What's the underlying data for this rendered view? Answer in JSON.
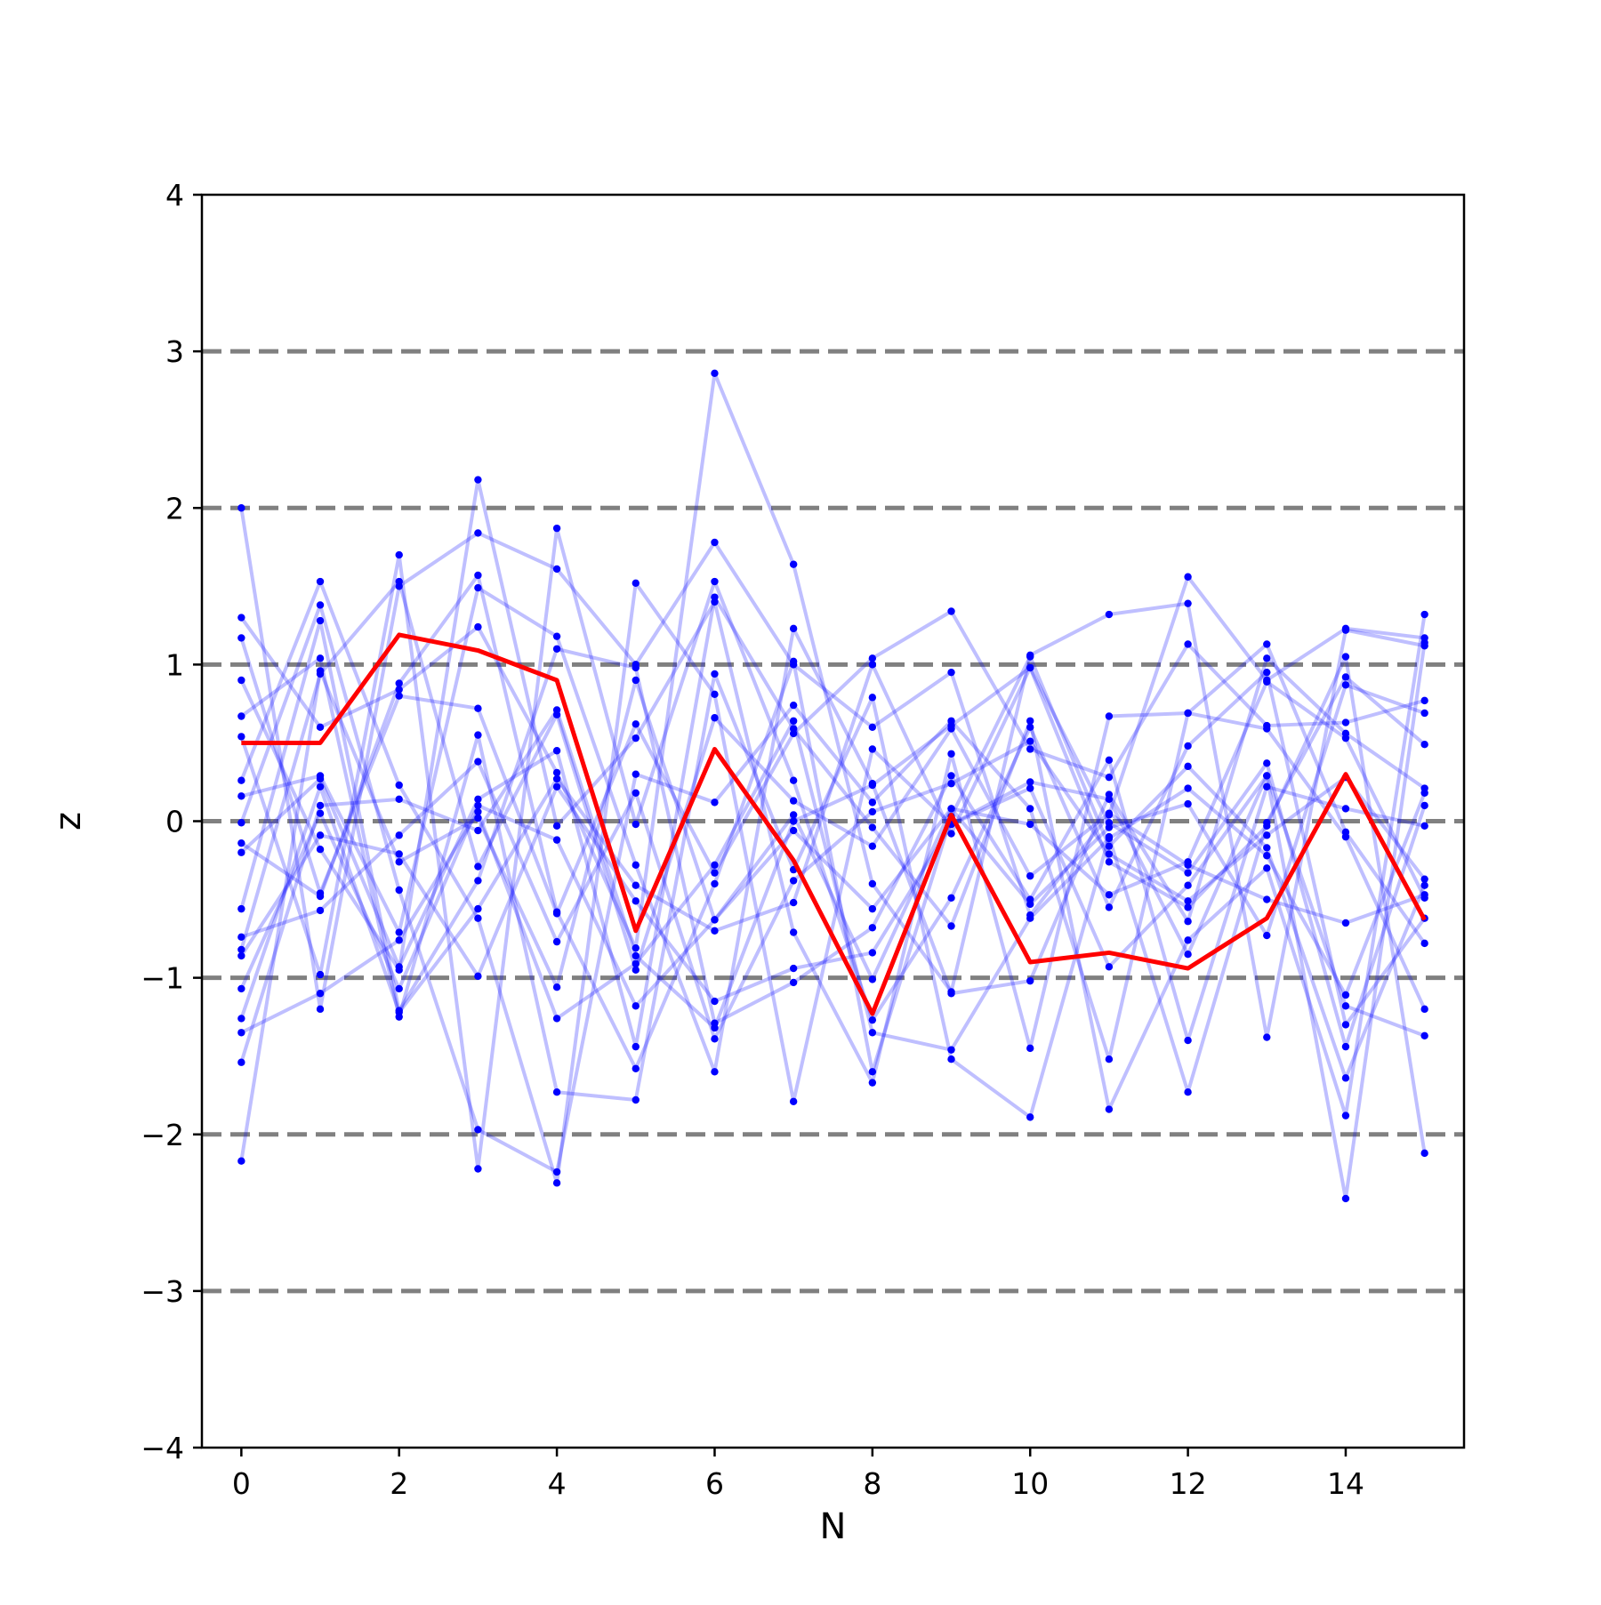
{
  "chart_data": {
    "type": "line",
    "xlabel": "N",
    "ylabel": "z",
    "xlim": [
      -0.5,
      15.5
    ],
    "ylim": [
      -4,
      4
    ],
    "x_ticks": [
      0,
      2,
      4,
      6,
      8,
      10,
      12,
      14
    ],
    "y_ticks": [
      -4,
      -3,
      -2,
      -1,
      0,
      1,
      2,
      3,
      4
    ],
    "x_tick_labels": [
      "0",
      "2",
      "4",
      "6",
      "8",
      "10",
      "12",
      "14"
    ],
    "y_tick_labels": [
      "−4",
      "−3",
      "−2",
      "−1",
      "0",
      "1",
      "2",
      "3",
      "4"
    ],
    "reference_lines": [
      -3,
      -2,
      -1,
      0,
      1,
      2,
      3
    ],
    "grid": false,
    "legend": "none",
    "colors": {
      "trajectories": "#0000ff",
      "highlight": "#ff0000",
      "reference_lines": "#808080"
    },
    "x": [
      0,
      1,
      2,
      3,
      4,
      5,
      6,
      7,
      8,
      9,
      10,
      11,
      12,
      13,
      14,
      15
    ],
    "highlight_series": {
      "values": [
        0.5,
        0.5,
        1.19,
        1.09,
        0.9,
        -0.7,
        0.46,
        -0.25,
        -1.23,
        0.04,
        -0.9,
        -0.84,
        -0.94,
        -0.62,
        0.3,
        -0.63
      ]
    },
    "series": [
      {
        "values": [
          2.0,
          -1.2,
          1.5,
          1.84,
          1.61,
          1.0,
          1.78,
          1.0,
          0.6,
          0.95,
          -0.6,
          0.04,
          1.56,
          0.9,
          1.23,
          1.17
        ]
      },
      {
        "values": [
          1.3,
          0.6,
          0.84,
          1.24,
          0.31,
          -0.81,
          2.86,
          1.64,
          -0.4,
          -1.09,
          1.06,
          1.32,
          1.39,
          -1.38,
          1.22,
          1.12
        ]
      },
      {
        "values": [
          1.17,
          -0.46,
          0.8,
          0.72,
          -0.59,
          0.62,
          -0.33,
          0.56,
          1.04,
          1.34,
          0.46,
          0.28,
          1.13,
          0.61,
          0.63,
          0.77
        ]
      },
      {
        "values": [
          0.9,
          -0.18,
          -0.95,
          2.18,
          -0.03,
          0.53,
          1.4,
          -0.71,
          -1.67,
          0.43,
          -1.45,
          0.67,
          0.69,
          1.13,
          -0.07,
          -0.78
        ]
      },
      {
        "values": [
          0.67,
          1.04,
          -1.25,
          0.55,
          -1.73,
          -1.78,
          0.94,
          -0.31,
          0.79,
          -1.52,
          -1.89,
          -0.1,
          -1.73,
          -0.01,
          0.92,
          0.49
        ]
      },
      {
        "values": [
          0.54,
          -0.98,
          1.7,
          -2.22,
          1.87,
          -0.02,
          1.53,
          0.26,
          -1.27,
          -0.49,
          0.6,
          -0.55,
          0.48,
          0.95,
          -1.3,
          -0.62
        ]
      },
      {
        "values": [
          0.26,
          1.53,
          0.23,
          -0.62,
          -2.31,
          1.52,
          0.81,
          -1.79,
          0.46,
          -0.02,
          0.21,
          -0.93,
          -0.41,
          0.29,
          -2.41,
          1.14
        ]
      },
      {
        "values": [
          0.16,
          0.29,
          -0.71,
          1.49,
          1.18,
          -0.28,
          -1.6,
          1.23,
          0.24,
          -1.1,
          -1.02,
          0.17,
          -0.64,
          1.04,
          0.56,
          0.21
        ]
      },
      {
        "values": [
          -0.01,
          1.38,
          -0.44,
          -1.97,
          -2.24,
          0.3,
          0.12,
          0.74,
          0.12,
          0.64,
          0.08,
          -1.52,
          0.69,
          0.59,
          -0.1,
          -1.2
        ]
      },
      {
        "values": [
          -0.14,
          -0.48,
          0.88,
          1.57,
          -0.58,
          -1.58,
          -0.4,
          1.02,
          -1.6,
          0.03,
          1.05,
          -0.16,
          0.35,
          -0.17,
          -1.64,
          -0.41
        ]
      },
      {
        "values": [
          -0.2,
          0.27,
          -0.93,
          0.14,
          0.45,
          -1.44,
          1.43,
          0.59,
          -0.04,
          -0.67,
          0.64,
          -1.84,
          -0.76,
          -0.3,
          -1.88,
          1.32
        ]
      },
      {
        "values": [
          -0.56,
          1.28,
          -1.21,
          -0.38,
          1.1,
          0.98,
          -1.29,
          -1.03,
          -0.68,
          0.29,
          -0.5,
          0.39,
          -1.4,
          0.22,
          0.08,
          -0.03
        ]
      },
      {
        "values": [
          -0.74,
          -0.57,
          -0.09,
          0.38,
          -0.77,
          0.18,
          -1.39,
          -0.38,
          0.06,
          0.24,
          0.51,
          -0.21,
          -0.51,
          -0.09,
          0.28,
          -0.37
        ]
      },
      {
        "values": [
          -0.82,
          0.94,
          1.53,
          -0.29,
          0.68,
          -0.95,
          0.66,
          0.13,
          -0.16,
          0.59,
          -0.35,
          0.05,
          -0.28,
          -0.5,
          -0.65,
          -0.47
        ]
      },
      {
        "values": [
          -0.86,
          -0.09,
          -0.21,
          -0.99,
          0.22,
          -0.51,
          -1.15,
          -0.94,
          -0.84,
          -0.02,
          0.25,
          0.14,
          -0.85,
          0.29,
          -1.18,
          -1.37
        ]
      },
      {
        "values": [
          -1.07,
          0.05,
          -1.07,
          0.1,
          -0.12,
          -1.18,
          -0.63,
          0.04,
          -1.01,
          0.08,
          -0.53,
          -0.04,
          0.11,
          -0.73,
          0.87,
          0.69
        ]
      },
      {
        "values": [
          -1.26,
          0.22,
          -1.22,
          -0.56,
          0.27,
          -0.41,
          -0.7,
          -0.52,
          1.0,
          -0.08,
          0.98,
          -0.26,
          -0.55,
          -0.03,
          1.05,
          -2.12
        ]
      },
      {
        "values": [
          -1.35,
          -1.1,
          -0.76,
          0.06,
          -1.26,
          -0.91,
          -0.28,
          0.64,
          -1.35,
          -1.46,
          -0.62,
          -0.11,
          0.21,
          -0.22,
          -1.11,
          0.18
        ]
      },
      {
        "values": [
          -1.54,
          0.1,
          0.14,
          -0.06,
          0.71,
          -0.86,
          -1.32,
          0.0,
          0.23,
          0.61,
          0.98,
          -0.01,
          -0.33,
          0.37,
          -1.44,
          0.1
        ]
      },
      {
        "values": [
          -2.17,
          0.96,
          -0.26,
          0.02,
          -1.06,
          0.9,
          -0.63,
          -0.06,
          -0.56,
          0.08,
          -0.02,
          -0.47,
          -0.26,
          0.89,
          0.53,
          -0.49
        ]
      }
    ]
  }
}
